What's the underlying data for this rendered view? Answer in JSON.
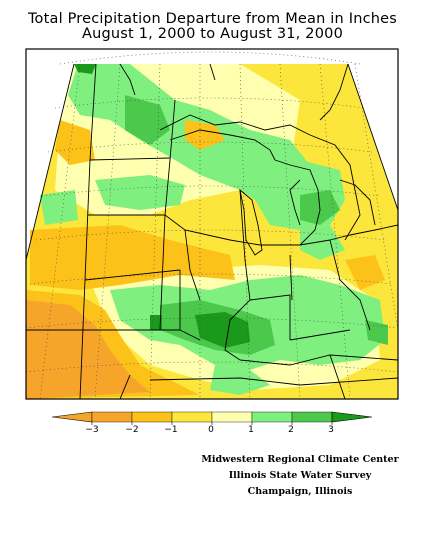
{
  "title": {
    "line1": "Total Precipitation Departure from Mean in Inches",
    "line2": "August 1, 2000 to August 31, 2000"
  },
  "legend": {
    "colors": [
      "#f7a52a",
      "#fcc21a",
      "#fde63c",
      "#ffffb0",
      "#7ff07f",
      "#4cc94c",
      "#1a991a"
    ],
    "under_color": "#f7a52a",
    "over_color": "#1a991a",
    "ticks": [
      "−3",
      "−2",
      "−1",
      "0",
      "1",
      "2",
      "3"
    ]
  },
  "credits": [
    "Midwestern Regional Climate Center",
    "Illinois State Water Survey",
    "Champaign, Illinois"
  ]
}
